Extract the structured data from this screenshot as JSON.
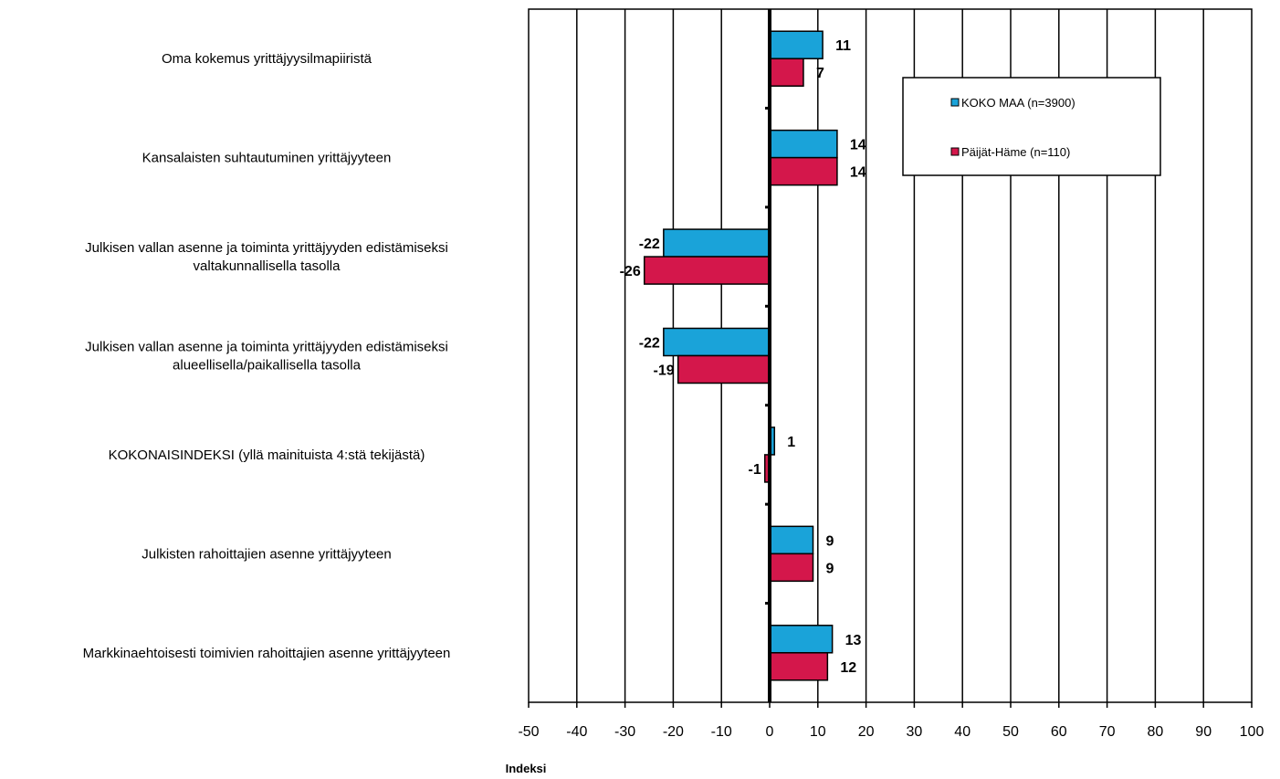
{
  "chart_data": {
    "type": "bar",
    "orientation": "horizontal",
    "categories": [
      [
        "Oma kokemus yrittäjyysilmapiiristä"
      ],
      [
        "Kansalaisten suhtautuminen yrittäjyyteen"
      ],
      [
        "Julkisen vallan asenne ja toiminta yrittäjyyden edistämiseksi",
        "valtakunnallisella tasolla"
      ],
      [
        "Julkisen vallan asenne ja toiminta yrittäjyyden edistämiseksi",
        "alueellisella/paikallisella  tasolla"
      ],
      [
        "KOKONAISINDEKSI (yllä mainituista 4:stä tekijästä)"
      ],
      [
        "Julkisten rahoittajien asenne yrittäjyyteen"
      ],
      [
        "Markkinaehtoisesti toimivien rahoittajien asenne yrittäjyyteen"
      ]
    ],
    "series": [
      {
        "name": "KOKO MAA (n=3900)",
        "color": "#1aa3d9",
        "values": [
          11,
          14,
          -22,
          -22,
          1,
          9,
          13
        ],
        "labels": [
          "11",
          "14",
          "-22",
          "-22",
          "1",
          "9",
          "13"
        ]
      },
      {
        "name": "Päijät-Häme (n=110)",
        "color": "#d4174b",
        "values": [
          7,
          14,
          -26,
          -19,
          -1,
          9,
          12
        ],
        "labels": [
          "7",
          "14",
          "-26",
          "-19",
          "-1",
          "9",
          "12"
        ]
      }
    ],
    "xlabel": "Indeksi",
    "xlim": [
      -50,
      100
    ],
    "xticks": [
      -50,
      -40,
      -30,
      -20,
      -10,
      0,
      10,
      20,
      30,
      40,
      50,
      60,
      70,
      80,
      90,
      100
    ],
    "grid": "vertical",
    "legend_position": "top-right"
  }
}
